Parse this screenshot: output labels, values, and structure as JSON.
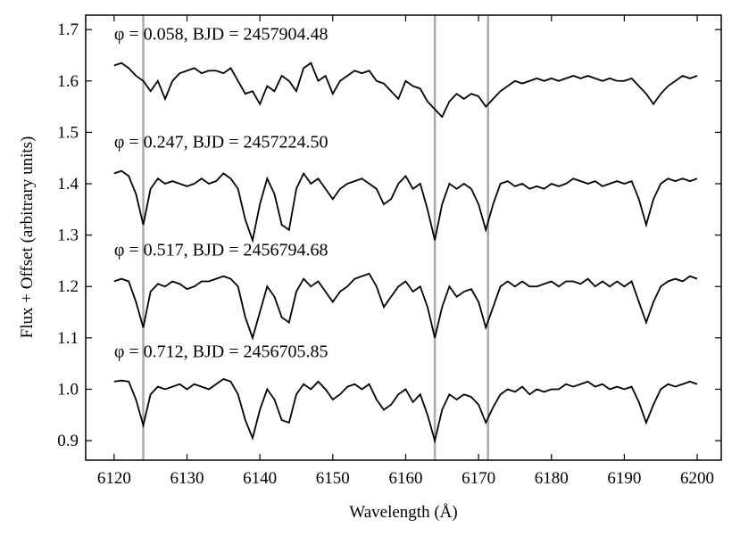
{
  "chart_data": {
    "type": "line",
    "xlabel": "Wavelength (Å)",
    "ylabel": "Flux + Offset (arbitrary units)",
    "x": [
      6120,
      6121,
      6122,
      6123,
      6124,
      6125,
      6126,
      6127,
      6128,
      6129,
      6130,
      6131,
      6132,
      6133,
      6134,
      6135,
      6136,
      6137,
      6138,
      6139,
      6140,
      6141,
      6142,
      6143,
      6144,
      6145,
      6146,
      6147,
      6148,
      6149,
      6150,
      6151,
      6152,
      6153,
      6154,
      6155,
      6156,
      6157,
      6158,
      6159,
      6160,
      6161,
      6162,
      6163,
      6164,
      6165,
      6166,
      6167,
      6168,
      6169,
      6170,
      6171,
      6172,
      6173,
      6174,
      6175,
      6176,
      6177,
      6178,
      6179,
      6180,
      6181,
      6182,
      6183,
      6184,
      6185,
      6186,
      6187,
      6188,
      6189,
      6190,
      6191,
      6192,
      6193,
      6194,
      6195,
      6196,
      6197,
      6198,
      6199,
      6200
    ],
    "series": [
      {
        "name": "φ = 0.058, BJD = 2457904.48",
        "color": "#000000",
        "values": [
          1.63,
          1.635,
          1.625,
          1.61,
          1.6,
          1.58,
          1.6,
          1.565,
          1.6,
          1.615,
          1.62,
          1.625,
          1.615,
          1.62,
          1.62,
          1.615,
          1.625,
          1.6,
          1.575,
          1.58,
          1.555,
          1.59,
          1.58,
          1.61,
          1.6,
          1.58,
          1.625,
          1.635,
          1.6,
          1.61,
          1.575,
          1.6,
          1.61,
          1.62,
          1.615,
          1.62,
          1.6,
          1.595,
          1.58,
          1.565,
          1.6,
          1.59,
          1.585,
          1.56,
          1.545,
          1.53,
          1.56,
          1.575,
          1.565,
          1.575,
          1.57,
          1.55,
          1.565,
          1.58,
          1.59,
          1.6,
          1.595,
          1.6,
          1.605,
          1.6,
          1.605,
          1.6,
          1.605,
          1.61,
          1.605,
          1.61,
          1.605,
          1.6,
          1.605,
          1.6,
          1.6,
          1.605,
          1.59,
          1.575,
          1.555,
          1.575,
          1.59,
          1.6,
          1.61,
          1.605,
          1.61
        ]
      },
      {
        "name": "φ = 0.247, BJD = 2457224.50",
        "color": "#000000",
        "values": [
          1.42,
          1.425,
          1.415,
          1.38,
          1.32,
          1.39,
          1.41,
          1.4,
          1.405,
          1.4,
          1.395,
          1.4,
          1.41,
          1.4,
          1.405,
          1.42,
          1.41,
          1.39,
          1.33,
          1.29,
          1.36,
          1.41,
          1.38,
          1.32,
          1.31,
          1.39,
          1.42,
          1.4,
          1.41,
          1.39,
          1.37,
          1.39,
          1.4,
          1.405,
          1.41,
          1.4,
          1.39,
          1.36,
          1.37,
          1.4,
          1.415,
          1.39,
          1.4,
          1.35,
          1.29,
          1.36,
          1.4,
          1.39,
          1.4,
          1.39,
          1.36,
          1.31,
          1.36,
          1.4,
          1.405,
          1.395,
          1.4,
          1.39,
          1.395,
          1.39,
          1.4,
          1.395,
          1.4,
          1.41,
          1.405,
          1.4,
          1.405,
          1.395,
          1.4,
          1.405,
          1.4,
          1.405,
          1.37,
          1.32,
          1.37,
          1.4,
          1.41,
          1.405,
          1.41,
          1.405,
          1.41
        ]
      },
      {
        "name": "φ = 0.517, BJD = 2456794.68",
        "color": "#000000",
        "values": [
          1.21,
          1.215,
          1.21,
          1.17,
          1.12,
          1.19,
          1.205,
          1.2,
          1.21,
          1.205,
          1.195,
          1.2,
          1.21,
          1.21,
          1.215,
          1.22,
          1.215,
          1.2,
          1.14,
          1.1,
          1.15,
          1.2,
          1.18,
          1.14,
          1.13,
          1.19,
          1.215,
          1.2,
          1.21,
          1.19,
          1.17,
          1.19,
          1.2,
          1.215,
          1.22,
          1.225,
          1.2,
          1.16,
          1.18,
          1.2,
          1.21,
          1.19,
          1.2,
          1.16,
          1.1,
          1.16,
          1.2,
          1.18,
          1.19,
          1.195,
          1.17,
          1.12,
          1.16,
          1.2,
          1.21,
          1.2,
          1.21,
          1.2,
          1.2,
          1.205,
          1.21,
          1.2,
          1.21,
          1.21,
          1.205,
          1.215,
          1.2,
          1.21,
          1.2,
          1.21,
          1.2,
          1.21,
          1.17,
          1.13,
          1.17,
          1.2,
          1.21,
          1.215,
          1.21,
          1.22,
          1.215
        ]
      },
      {
        "name": "φ = 0.712, BJD = 2456705.85",
        "color": "#000000",
        "values": [
          1.015,
          1.017,
          1.015,
          0.98,
          0.93,
          0.99,
          1.005,
          1.0,
          1.005,
          1.01,
          1.0,
          1.01,
          1.005,
          1.0,
          1.01,
          1.02,
          1.015,
          0.99,
          0.94,
          0.905,
          0.96,
          1.0,
          0.98,
          0.94,
          0.935,
          0.99,
          1.01,
          1.0,
          1.015,
          1.0,
          0.98,
          0.99,
          1.005,
          1.01,
          1.0,
          1.01,
          0.98,
          0.96,
          0.97,
          0.99,
          1.0,
          0.975,
          0.99,
          0.95,
          0.9,
          0.96,
          0.99,
          0.98,
          0.99,
          0.985,
          0.97,
          0.935,
          0.965,
          0.99,
          1.0,
          0.995,
          1.005,
          0.99,
          1.0,
          0.995,
          1.0,
          1.0,
          1.01,
          1.005,
          1.01,
          1.015,
          1.005,
          1.01,
          1.0,
          1.005,
          1.0,
          1.005,
          0.975,
          0.935,
          0.97,
          1.0,
          1.01,
          1.005,
          1.01,
          1.015,
          1.01
        ]
      }
    ],
    "reference_lines": {
      "x": [
        6124,
        6164,
        6171.3
      ],
      "color": "#aaaaaa"
    },
    "xlim": [
      6116.1,
      6203.3
    ],
    "ylim": [
      0.862,
      1.728
    ],
    "xticks": [
      6120,
      6130,
      6140,
      6150,
      6160,
      6170,
      6180,
      6190,
      6200
    ],
    "yticks": [
      0.9,
      {
        "value": 1,
        "label": "1.0"
      },
      1.1,
      1.2,
      1.3,
      1.4,
      1.5,
      1.6,
      1.7
    ]
  }
}
